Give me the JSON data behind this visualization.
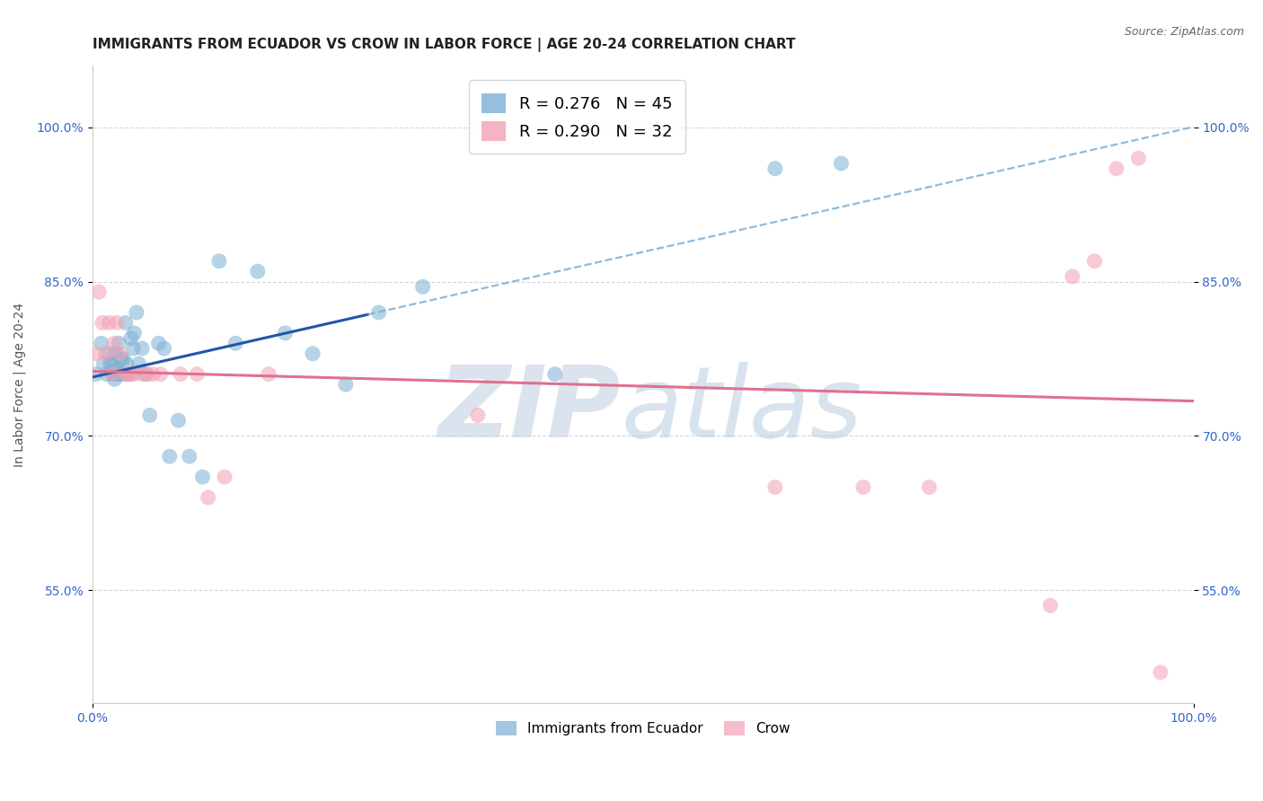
{
  "title": "IMMIGRANTS FROM ECUADOR VS CROW IN LABOR FORCE | AGE 20-24 CORRELATION CHART",
  "source": "Source: ZipAtlas.com",
  "ylabel": "In Labor Force | Age 20-24",
  "xlim": [
    0.0,
    1.0
  ],
  "ylim": [
    0.44,
    1.06
  ],
  "ytick_labels": [
    "55.0%",
    "70.0%",
    "85.0%",
    "100.0%"
  ],
  "ytick_values": [
    0.55,
    0.7,
    0.85,
    1.0
  ],
  "xtick_labels": [
    "0.0%",
    "100.0%"
  ],
  "xtick_values": [
    0.0,
    1.0
  ],
  "ecuador_color": "#7bafd4",
  "crow_color": "#f4a0b5",
  "ecuador_line_color": "#2255aa",
  "crow_line_color": "#e07090",
  "ecuador_dash_color": "#7bafd4",
  "background_color": "#ffffff",
  "grid_color": "#cccccc",
  "ecuador_x": [
    0.003,
    0.008,
    0.01,
    0.013,
    0.015,
    0.016,
    0.018,
    0.019,
    0.02,
    0.021,
    0.022,
    0.023,
    0.024,
    0.025,
    0.026,
    0.027,
    0.028,
    0.03,
    0.031,
    0.033,
    0.035,
    0.037,
    0.038,
    0.04,
    0.042,
    0.045,
    0.048,
    0.052,
    0.06,
    0.065,
    0.07,
    0.078,
    0.088,
    0.1,
    0.115,
    0.13,
    0.15,
    0.175,
    0.2,
    0.23,
    0.26,
    0.3,
    0.42,
    0.62,
    0.68
  ],
  "ecuador_y": [
    0.76,
    0.79,
    0.77,
    0.76,
    0.78,
    0.77,
    0.77,
    0.76,
    0.755,
    0.78,
    0.765,
    0.76,
    0.79,
    0.76,
    0.775,
    0.76,
    0.775,
    0.81,
    0.77,
    0.76,
    0.795,
    0.785,
    0.8,
    0.82,
    0.77,
    0.785,
    0.76,
    0.72,
    0.79,
    0.785,
    0.68,
    0.715,
    0.68,
    0.66,
    0.87,
    0.79,
    0.86,
    0.8,
    0.78,
    0.75,
    0.82,
    0.845,
    0.76,
    0.96,
    0.965
  ],
  "crow_x": [
    0.003,
    0.006,
    0.009,
    0.012,
    0.015,
    0.018,
    0.02,
    0.022,
    0.025,
    0.03,
    0.032,
    0.035,
    0.038,
    0.045,
    0.05,
    0.055,
    0.062,
    0.08,
    0.095,
    0.105,
    0.12,
    0.16,
    0.35,
    0.62,
    0.7,
    0.76,
    0.87,
    0.89,
    0.91,
    0.93,
    0.95,
    0.97
  ],
  "crow_y": [
    0.78,
    0.84,
    0.81,
    0.78,
    0.81,
    0.76,
    0.79,
    0.81,
    0.78,
    0.76,
    0.76,
    0.76,
    0.76,
    0.76,
    0.76,
    0.76,
    0.76,
    0.76,
    0.76,
    0.64,
    0.66,
    0.76,
    0.72,
    0.65,
    0.65,
    0.65,
    0.535,
    0.855,
    0.87,
    0.96,
    0.97,
    0.47
  ],
  "title_fontsize": 11,
  "axis_label_fontsize": 10,
  "tick_fontsize": 10,
  "legend_fontsize": 13,
  "source_fontsize": 9
}
